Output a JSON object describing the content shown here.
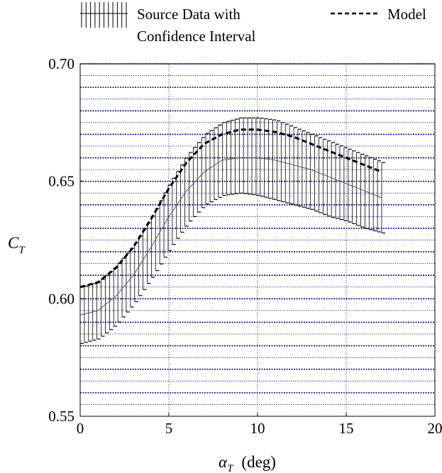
{
  "chart_data": {
    "type": "line",
    "xlabel": {
      "symbol": "α",
      "subscript": "T",
      "unit": "(deg)"
    },
    "ylabel": {
      "symbol": "C",
      "subscript": "T"
    },
    "xlim": [
      0,
      20
    ],
    "ylim": [
      0.55,
      0.7
    ],
    "x_ticks": [
      0,
      5,
      10,
      15,
      20
    ],
    "x_tick_labels": [
      "0",
      "5",
      "10",
      "15",
      "20"
    ],
    "y_ticks": [
      0.55,
      0.6,
      0.65,
      0.7
    ],
    "y_tick_labels": [
      "0.55",
      "0.60",
      "0.65",
      "0.70"
    ],
    "y_grid_major": [
      0.56,
      0.57,
      0.58,
      0.59,
      0.6,
      0.61,
      0.62,
      0.63,
      0.64,
      0.65,
      0.66,
      0.67,
      0.68,
      0.69,
      0.7
    ],
    "y_grid_minor": [
      0.555,
      0.565,
      0.575,
      0.585,
      0.595,
      0.605,
      0.615,
      0.625,
      0.635,
      0.645,
      0.655,
      0.665,
      0.675,
      0.685,
      0.695
    ],
    "grid": true,
    "legend": {
      "position": "top",
      "entries": [
        {
          "label_line1": "Source Data with",
          "label_line2": "Confidence Interval",
          "style": "errorbar"
        },
        {
          "label_line1": "Model",
          "label_line2": "",
          "style": "dashed"
        }
      ]
    },
    "series": [
      {
        "name": "Source Data with Confidence Interval",
        "style": "errorbar",
        "x": [
          0,
          1,
          2,
          3,
          4,
          5,
          6,
          7,
          8,
          9,
          10,
          11,
          12,
          13,
          14,
          15,
          16,
          17
        ],
        "y": [
          0.593,
          0.595,
          0.601,
          0.61,
          0.622,
          0.635,
          0.646,
          0.654,
          0.659,
          0.66,
          0.66,
          0.659,
          0.657,
          0.655,
          0.652,
          0.649,
          0.646,
          0.643
        ],
        "lower": [
          0.581,
          0.583,
          0.589,
          0.598,
          0.609,
          0.621,
          0.632,
          0.64,
          0.644,
          0.645,
          0.644,
          0.642,
          0.64,
          0.638,
          0.635,
          0.633,
          0.63,
          0.628
        ],
        "upper": [
          0.605,
          0.607,
          0.614,
          0.623,
          0.635,
          0.649,
          0.661,
          0.67,
          0.675,
          0.677,
          0.677,
          0.676,
          0.673,
          0.67,
          0.667,
          0.664,
          0.661,
          0.658
        ]
      },
      {
        "name": "Model",
        "style": "dashed",
        "x": [
          0,
          1,
          2,
          3,
          4,
          5,
          6,
          7,
          8,
          9,
          10,
          11,
          12,
          13,
          14,
          15,
          16,
          17
        ],
        "y": [
          0.605,
          0.607,
          0.613,
          0.622,
          0.634,
          0.647,
          0.658,
          0.666,
          0.67,
          0.672,
          0.672,
          0.671,
          0.669,
          0.666,
          0.663,
          0.66,
          0.657,
          0.654
        ]
      }
    ]
  }
}
